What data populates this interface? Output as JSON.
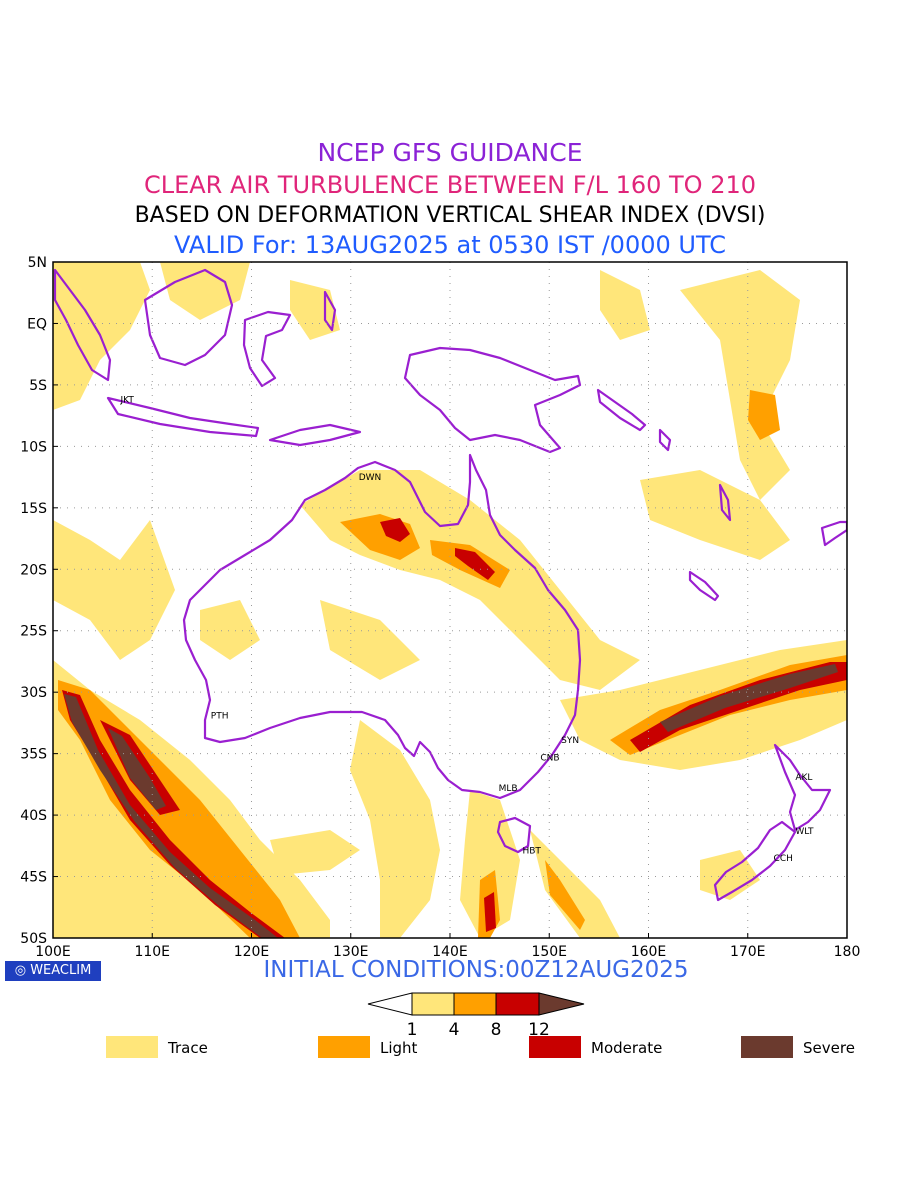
{
  "titles": {
    "line1": "NCEP GFS GUIDANCE",
    "line2": "CLEAR AIR TURBULENCE BETWEEN F/L 160 TO 210",
    "line3": "BASED ON DEFORMATION VERTICAL SHEAR INDEX (DVSI)",
    "line4": "VALID For: 13AUG2025 at 0530 IST /0000 UTC"
  },
  "map": {
    "lon_range": [
      100,
      180
    ],
    "lat_range": [
      -50,
      5
    ],
    "x_ticks": [
      "100E",
      "110E",
      "120E",
      "130E",
      "140E",
      "150E",
      "160E",
      "170E",
      "180"
    ],
    "y_ticks": [
      "5N",
      "EQ",
      "5S",
      "10S",
      "15S",
      "20S",
      "25S",
      "30S",
      "35S",
      "40S",
      "45S",
      "50S"
    ],
    "cities": [
      {
        "code": "JKT",
        "lon": 106.8,
        "lat": -6.2
      },
      {
        "code": "DWN",
        "lon": 130.8,
        "lat": -12.5
      },
      {
        "code": "PTH",
        "lon": 115.9,
        "lat": -31.9
      },
      {
        "code": "SYN",
        "lon": 151.2,
        "lat": -33.9
      },
      {
        "code": "CNB",
        "lon": 149.1,
        "lat": -35.3
      },
      {
        "code": "MLB",
        "lon": 144.9,
        "lat": -37.8
      },
      {
        "code": "HBT",
        "lon": 147.3,
        "lat": -42.9
      },
      {
        "code": "AKL",
        "lon": 174.8,
        "lat": -36.9
      },
      {
        "code": "WLT",
        "lon": 174.8,
        "lat": -41.3
      },
      {
        "code": "CCH",
        "lon": 172.6,
        "lat": -43.5
      }
    ],
    "colors": {
      "trace": "#ffe67a",
      "light": "#ffa000",
      "moderate": "#c80000",
      "severe": "#6b3a2e",
      "coast": "#9a1fd0"
    }
  },
  "badge": "WEACLIM",
  "initial_conditions": "INITIAL CONDITIONS:00Z12AUG2025",
  "colorbar": {
    "ticks": [
      "1",
      "4",
      "8",
      "12"
    ]
  },
  "legend": [
    {
      "label": "Trace",
      "color": "#ffe67a"
    },
    {
      "label": "Light",
      "color": "#ffa000"
    },
    {
      "label": "Moderate",
      "color": "#c80000"
    },
    {
      "label": "Severe",
      "color": "#6b3a2e"
    }
  ]
}
